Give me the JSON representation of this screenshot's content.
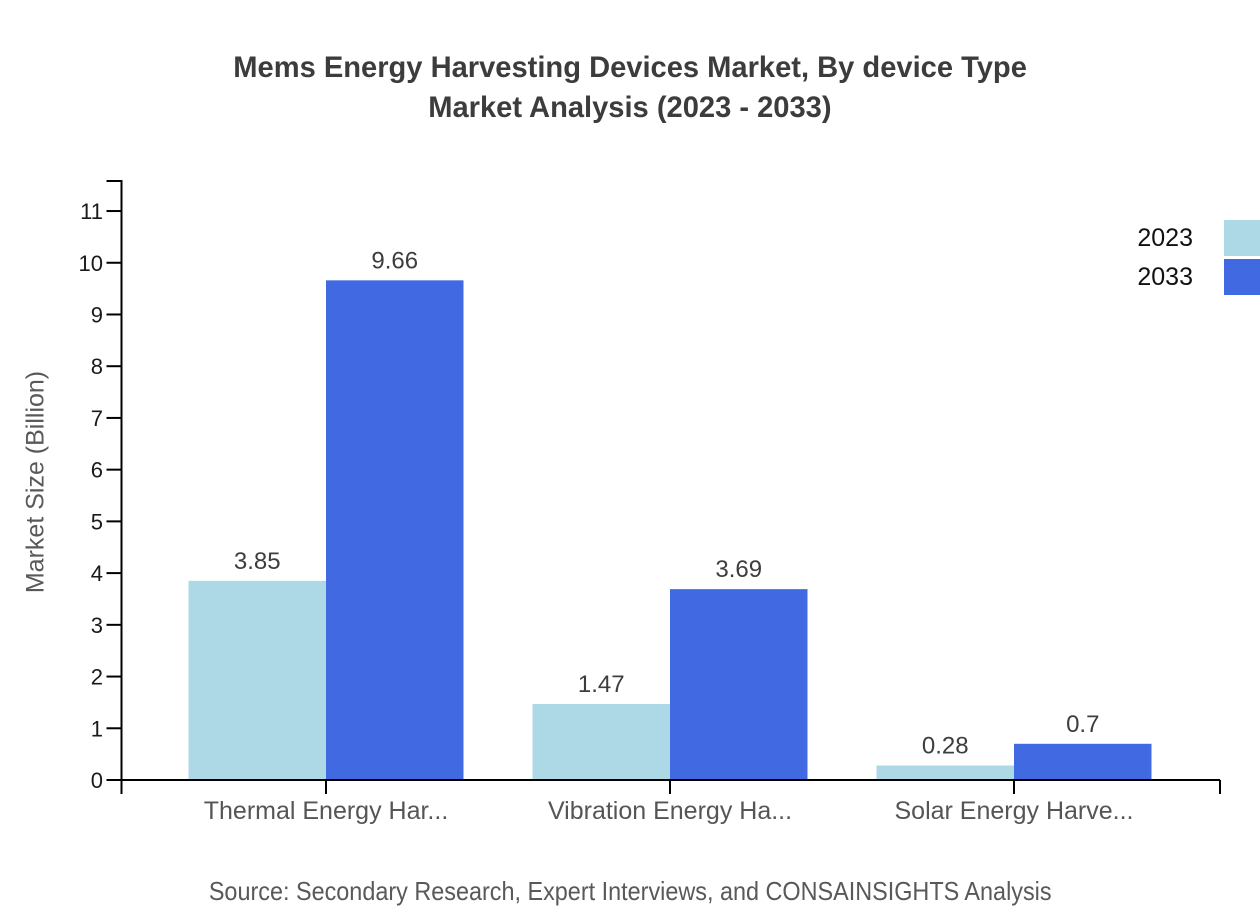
{
  "chart_data": {
    "type": "bar",
    "title_line1": "Mems Energy Harvesting Devices Market, By device Type",
    "title_line2": "Market Analysis (2023 - 2033)",
    "ylabel": "Market Size (Billion)",
    "categories": [
      "Thermal Energy Har...",
      "Vibration Energy Ha...",
      "Solar Energy Harve..."
    ],
    "series": [
      {
        "name": "2023",
        "color": "#ADD8E6",
        "values": [
          3.85,
          1.47,
          0.28
        ]
      },
      {
        "name": "2033",
        "color": "#4169E1",
        "values": [
          9.66,
          3.69,
          0.7
        ]
      }
    ],
    "yticks": [
      0,
      1,
      2,
      3,
      4,
      5,
      6,
      7,
      8,
      9,
      10,
      11
    ],
    "ylim": [
      0,
      11.6
    ],
    "grid": false,
    "legend_position": "top-right",
    "source": "Source: Secondary Research, Expert Interviews, and CONSAINSIGHTS Analysis",
    "colors": {
      "axis": "#000000",
      "title_text": "#3c3c3c",
      "tick_text": "#1a1a1a",
      "category_text": "#555555",
      "value_text": "#3d3d3d",
      "source_text": "#595959"
    }
  }
}
